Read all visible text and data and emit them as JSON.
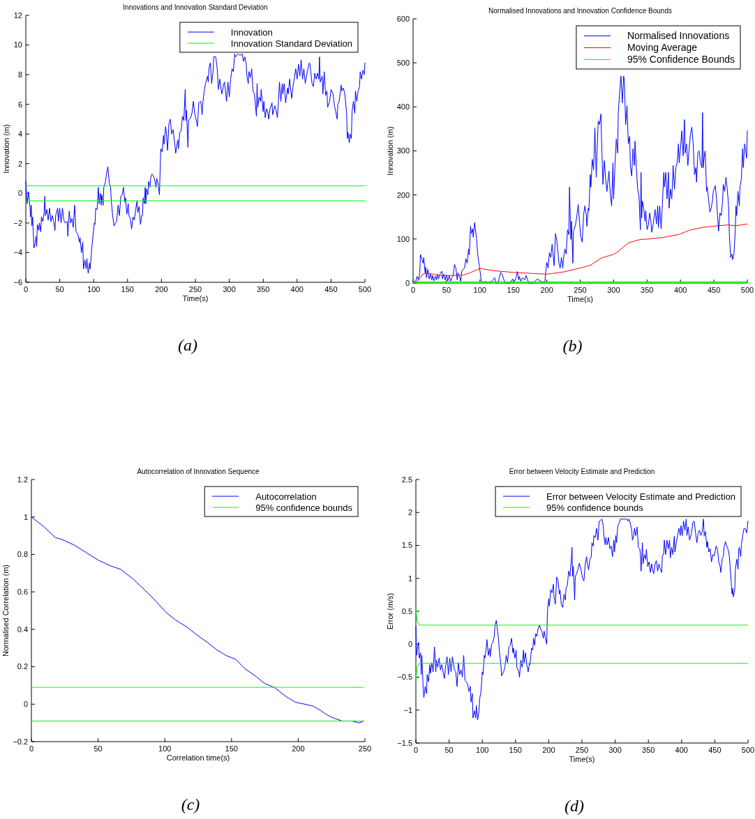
{
  "chart_data": [
    {
      "type": "line",
      "title": "Innovations and Innovation Standard Deviation",
      "xlabel": "Time(s)",
      "ylabel": "Innovation (m)",
      "annotations": [
        "(a)"
      ],
      "xlim": [
        0,
        500
      ],
      "ylim": [
        -6,
        12
      ],
      "xticks": [
        0,
        50,
        100,
        150,
        200,
        250,
        300,
        350,
        400,
        450,
        500
      ],
      "yticks": [
        {
          "value": -6,
          "label": "−6"
        },
        {
          "value": -4,
          "label": "−4"
        },
        {
          "value": -2,
          "label": "−2"
        },
        0,
        2,
        4,
        6,
        8,
        10,
        12
      ],
      "legend": "top right",
      "series": [
        {
          "name": "Innovation",
          "color": "#0000ff",
          "x": [
            0,
            2,
            4,
            6,
            7,
            8,
            9,
            10,
            12,
            14,
            15,
            16,
            17,
            19,
            20,
            22,
            23,
            25,
            27,
            28,
            29,
            31,
            33,
            35,
            37,
            39,
            41,
            43,
            44,
            47,
            48,
            50,
            52,
            54,
            56,
            58,
            61,
            62,
            64,
            66,
            68,
            70,
            72,
            74,
            76,
            77,
            79,
            80,
            82,
            84,
            85,
            87,
            89,
            90,
            92,
            94,
            95,
            97,
            99,
            101,
            102,
            103,
            105,
            107,
            108,
            110,
            111,
            112,
            114,
            115,
            117,
            119,
            121,
            123,
            125,
            126,
            128,
            130,
            132,
            134,
            136,
            138,
            140,
            142,
            144,
            146,
            147,
            149,
            151,
            152,
            154,
            156,
            158,
            160,
            162,
            164,
            165,
            167,
            169,
            171,
            172,
            173,
            175,
            176,
            177,
            178,
            180,
            181,
            183,
            184,
            186,
            188,
            190,
            192,
            193,
            195,
            197,
            199,
            201,
            203,
            204,
            206,
            207,
            209,
            211,
            213,
            215,
            217,
            220,
            221,
            224,
            225,
            227,
            229,
            231,
            233,
            235,
            236,
            237,
            239,
            240,
            243,
            245,
            247,
            249,
            251,
            253,
            255,
            258,
            260,
            261,
            263,
            265,
            268,
            269,
            270,
            272,
            274,
            276,
            277,
            280,
            282,
            284,
            286,
            289,
            292,
            293,
            296,
            298,
            300,
            302,
            304,
            306,
            308,
            309,
            313,
            316,
            319,
            321,
            323,
            325,
            326,
            328,
            329,
            331,
            333,
            335,
            337,
            340,
            341,
            342,
            344,
            346,
            347,
            350,
            351,
            353,
            355,
            357,
            358,
            360,
            363,
            364,
            367,
            369,
            371,
            373,
            374,
            376,
            378,
            379,
            381,
            383,
            386,
            387,
            389,
            392,
            394,
            396,
            398,
            400,
            402,
            404,
            406,
            408,
            410,
            412,
            415,
            418,
            419,
            422,
            424,
            426,
            428,
            430,
            432,
            433,
            434,
            437,
            438,
            440,
            442,
            444,
            445,
            448,
            450,
            453,
            455,
            457,
            459,
            460,
            462,
            465,
            466,
            468,
            470,
            471,
            473,
            474,
            475,
            477,
            478,
            480,
            481,
            483,
            485,
            486,
            488,
            490,
            492,
            493,
            495,
            497,
            499,
            500
          ],
          "values": [
            0.8,
            -0.7,
            0.1,
            -0.9,
            -1.6,
            -0.8,
            -2.2,
            -1.6,
            -3.7,
            -3.3,
            -2.9,
            -3.6,
            -2.1,
            -2.5,
            -2.0,
            -2.6,
            -1.6,
            -1.9,
            -1.3,
            -0.2,
            -1.5,
            -1.1,
            -1.8,
            -1.0,
            -1.9,
            -1.5,
            -1.9,
            -2.5,
            -1.5,
            -1.0,
            -1.9,
            -1.0,
            -2.0,
            -1.0,
            -1.8,
            -2.0,
            -1.9,
            -2.9,
            -1.2,
            -2.0,
            -1.7,
            -2.3,
            -0.8,
            -2.6,
            -2.7,
            -2.8,
            -3.3,
            -3.0,
            -4.0,
            -3.3,
            -5.1,
            -4.5,
            -5.1,
            -4.4,
            -5.4,
            -4.7,
            -5.1,
            -3.8,
            -2.9,
            -2.0,
            -2.1,
            -1.0,
            -1.1,
            0.4,
            -0.7,
            0.0,
            -0.8,
            -0.1,
            -0.8,
            0.4,
            0.7,
            1.3,
            1.8,
            0.7,
            0.4,
            -0.5,
            -1.5,
            -2.2,
            -2.0,
            -1.9,
            -0.8,
            -1.5,
            -0.2,
            -0.1,
            0.4,
            -0.6,
            -0.3,
            -1.4,
            -0.7,
            -1.5,
            -1.7,
            -2.4,
            -1.6,
            -1.8,
            -1.1,
            -0.5,
            -1.3,
            -0.9,
            -2.1,
            -1.5,
            -1.5,
            -0.3,
            -0.7,
            0.4,
            -0.7,
            0.3,
            -0.1,
            0.8,
            0.4,
            1.0,
            1.3,
            1.2,
            0.9,
            0.4,
            1.0,
            0.7,
            -0.1,
            3.0,
            2.8,
            3.9,
            3.3,
            4.5,
            4.2,
            2.9,
            4.7,
            5.0,
            4.0,
            4.3,
            3.2,
            2.7,
            3.6,
            3.0,
            4.1,
            4.2,
            5.2,
            4.9,
            7.0,
            4.9,
            5.6,
            3.1,
            4.9,
            5.1,
            5.4,
            6.2,
            5.4,
            5.0,
            4.5,
            6.1,
            6.2,
            5.3,
            6.1,
            6.9,
            7.4,
            7.9,
            7.5,
            8.4,
            8.8,
            7.4,
            8.2,
            9.2,
            9.2,
            8.5,
            7.0,
            7.7,
            6.7,
            7.4,
            7.5,
            6.2,
            7.5,
            6.5,
            7.7,
            8.4,
            8.2,
            9.4,
            9.2,
            9.4,
            9.3,
            9.4,
            8.9,
            9.2,
            8.7,
            7.9,
            7.4,
            8.2,
            7.8,
            8.4,
            6.9,
            6.7,
            5.2,
            7.4,
            5.8,
            6.5,
            6.2,
            7.0,
            5.5,
            6.2,
            5.1,
            5.7,
            5.4,
            5.0,
            5.7,
            6.1,
            5.3,
            5.9,
            5.6,
            5.1,
            6.7,
            7.5,
            6.2,
            7.4,
            6.7,
            7.4,
            6.1,
            7.1,
            6.7,
            7.7,
            6.4,
            7.2,
            7.8,
            8.4,
            7.7,
            8.7,
            7.9,
            9.0,
            7.7,
            8.4,
            7.4,
            8.2,
            8.8,
            8.7,
            7.4,
            7.2,
            8.1,
            7.7,
            8.1,
            7.7,
            9.2,
            7.5,
            7.9,
            6.7,
            8.2,
            6.6,
            6.9,
            5.8,
            6.2,
            7.0,
            6.7,
            5.9,
            5.5,
            5.0,
            6.0,
            6.2,
            7.3,
            6.9,
            7.1,
            6.8,
            6.4,
            5.4,
            3.7,
            4.1,
            3.4,
            4.0,
            3.7,
            5.5,
            6.2,
            5.4,
            6.9,
            6.2,
            6.9,
            7.2,
            8.2,
            7.7,
            8.3,
            8.0,
            8.8
          ]
        },
        {
          "name": "Innovation Standard Deviation",
          "color": "#00ff00",
          "x": [
            0,
            4,
            500
          ],
          "values": [
            0.6,
            0.5,
            0.5
          ]
        },
        {
          "color": "#00ff00",
          "x": [
            0,
            4,
            500
          ],
          "values": [
            -0.6,
            -0.5,
            -0.5
          ]
        }
      ]
    },
    {
      "type": "line",
      "title": "Normalised Innovations and Innovation Confidence Bounds",
      "xlabel": "Time(s)",
      "ylabel": "Innovation (m)",
      "annotations": [
        "(b)"
      ],
      "xlim": [
        0,
        500
      ],
      "ylim": [
        0,
        600
      ],
      "xticks": [
        0,
        50,
        100,
        150,
        200,
        250,
        300,
        350,
        400,
        450,
        500
      ],
      "yticks": [
        0,
        100,
        200,
        300,
        400,
        500,
        600
      ],
      "legend": "top right",
      "series": [
        {
          "name": "Normalised Innovations",
          "color": "#0000ff",
          "x": [
            0,
            4,
            6,
            8,
            10,
            11,
            13,
            15,
            16,
            18,
            19,
            20,
            22,
            24,
            26,
            28,
            29,
            31,
            33,
            35,
            36,
            38,
            40,
            43,
            44,
            46,
            48,
            50,
            52,
            54,
            56,
            58,
            60,
            62,
            64,
            66,
            67,
            70,
            71,
            73,
            75,
            77,
            79,
            81,
            83,
            84,
            86,
            87,
            89,
            90,
            92,
            93,
            95,
            97,
            99,
            101,
            102,
            105,
            108,
            111,
            118,
            122,
            124,
            127,
            129,
            131,
            133,
            136,
            138,
            145,
            149,
            151,
            154,
            156,
            158,
            159,
            161,
            164,
            167,
            169,
            171,
            173,
            179,
            183,
            186,
            190,
            193,
            197,
            199,
            200,
            202,
            204,
            206,
            208,
            209,
            211,
            213,
            215,
            217,
            218,
            220,
            222,
            224,
            225,
            227,
            229,
            231,
            233,
            234,
            236,
            237,
            239,
            240,
            243,
            245,
            247,
            249,
            251,
            253,
            255,
            257,
            259,
            260,
            262,
            263,
            265,
            266,
            268,
            270,
            272,
            274,
            275,
            277,
            279,
            281,
            282,
            284,
            286,
            288,
            290,
            291,
            293,
            295,
            297,
            299,
            300,
            302,
            304,
            306,
            307,
            309,
            311,
            313,
            315,
            316,
            318,
            320,
            322,
            324,
            325,
            327,
            329,
            331,
            332,
            334,
            336,
            338,
            340,
            341,
            342,
            343,
            345,
            347,
            348,
            350,
            352,
            354,
            356,
            357,
            359,
            362,
            364,
            366,
            367,
            369,
            371,
            373,
            375,
            376,
            378,
            380,
            382,
            383,
            385,
            387,
            389,
            391,
            393,
            395,
            397,
            398,
            400,
            402,
            404,
            406,
            407,
            409,
            411,
            413,
            415,
            417,
            419,
            421,
            423,
            424,
            426,
            428,
            430,
            432,
            433,
            434,
            436,
            437,
            439,
            440,
            442,
            444,
            446,
            448,
            449,
            452,
            454,
            455,
            457,
            459,
            461,
            463,
            464,
            466,
            468,
            470,
            472,
            473,
            475,
            477,
            478,
            480,
            482,
            483,
            484,
            486,
            488,
            489,
            491,
            493,
            494,
            496,
            497,
            499,
            500
          ],
          "values": [
            0,
            4,
            15,
            7,
            23,
            65,
            55,
            45,
            58,
            23,
            36,
            12,
            31,
            9,
            20,
            7,
            17,
            5,
            15,
            7,
            20,
            9,
            20,
            27,
            9,
            20,
            7,
            18,
            5,
            17,
            4,
            12,
            17,
            42,
            34,
            7,
            23,
            12,
            4,
            28,
            31,
            34,
            55,
            45,
            77,
            64,
            129,
            112,
            123,
            104,
            137,
            126,
            99,
            61,
            39,
            17,
            4,
            1,
            4,
            0,
            4,
            12,
            0,
            0,
            12,
            24,
            20,
            7,
            0,
            0,
            9,
            1,
            12,
            26,
            7,
            15,
            4,
            12,
            7,
            17,
            9,
            0,
            0,
            5,
            9,
            5,
            2,
            1,
            34,
            47,
            34,
            69,
            58,
            88,
            72,
            39,
            112,
            96,
            66,
            47,
            34,
            58,
            34,
            55,
            77,
            66,
            121,
            110,
            218,
            99,
            140,
            45,
            118,
            132,
            153,
            178,
            137,
            104,
            93,
            153,
            175,
            156,
            129,
            170,
            164,
            246,
            218,
            281,
            257,
            352,
            240,
            289,
            368,
            360,
            384,
            322,
            224,
            278,
            237,
            208,
            224,
            254,
            202,
            175,
            273,
            191,
            267,
            327,
            295,
            387,
            433,
            470,
            409,
            470,
            460,
            360,
            403,
            316,
            333,
            267,
            243,
            305,
            267,
            322,
            262,
            213,
            197,
            121,
            251,
            148,
            186,
            170,
            140,
            164,
            121,
            132,
            159,
            137,
            115,
            132,
            167,
            134,
            175,
            126,
            175,
            123,
            180,
            251,
            218,
            251,
            191,
            251,
            170,
            213,
            191,
            267,
            213,
            262,
            273,
            316,
            273,
            305,
            346,
            289,
            371,
            295,
            316,
            267,
            305,
            338,
            354,
            316,
            246,
            262,
            229,
            295,
            300,
            273,
            262,
            387,
            262,
            295,
            300,
            208,
            218,
            191,
            161,
            170,
            189,
            208,
            221,
            191,
            164,
            118,
            159,
            153,
            186,
            224,
            208,
            240,
            213,
            175,
            115,
            58,
            66,
            53,
            66,
            121,
            175,
            153,
            208,
            175,
            218,
            235,
            305,
            262,
            316,
            308,
            284,
            346
          ]
        },
        {
          "name": "Moving Average",
          "color": "#ff0000",
          "x": [
            0,
            5,
            10,
            14,
            20,
            30,
            40,
            60,
            75,
            85,
            100,
            120,
            150,
            175,
            200,
            225,
            250,
            265,
            282,
            300,
            307,
            322,
            340,
            354,
            372,
            397,
            414,
            432,
            450,
            471,
            482,
            500
          ],
          "values": [
            0,
            2,
            10,
            19,
            23,
            20,
            17,
            17,
            18,
            23,
            33,
            28,
            24,
            22,
            20,
            25,
            34,
            40,
            57,
            65,
            72,
            91,
            99,
            100,
            103,
            110,
            120,
            126,
            129,
            132,
            130,
            134
          ]
        },
        {
          "name": "95% Confidence Bounds",
          "color": "#00ff00",
          "x": [
            0,
            4,
            500
          ],
          "values": [
            6,
            3,
            3
          ]
        },
        {
          "color": "#00ff00",
          "x": [
            0,
            500
          ],
          "values": [
            1,
            1
          ]
        }
      ]
    },
    {
      "type": "line",
      "title": "Autocorrelation of Innovation Sequence",
      "xlabel": "Correlation time(s)",
      "ylabel": "Normalised Correlation (m)",
      "annotations": [
        "(c)"
      ],
      "xlim": [
        0,
        250
      ],
      "ylim": [
        -0.2,
        1.2
      ],
      "xticks": [
        0,
        50,
        100,
        150,
        200,
        250
      ],
      "yticks": [
        {
          "value": -0.2,
          "label": "−0.2"
        },
        0,
        0.2,
        0.4,
        0.6,
        0.8,
        1,
        1.2
      ],
      "legend": "top right",
      "series": [
        {
          "name": "Autocorrelation",
          "color": "#0000ff",
          "x": [
            0,
            9,
            18,
            23,
            32,
            41,
            50,
            59,
            67,
            76,
            85,
            92,
            101,
            108,
            117,
            124,
            132,
            139,
            146,
            153,
            160,
            168,
            175,
            182,
            191,
            198,
            205,
            211,
            216,
            220,
            225,
            233,
            240,
            246,
            249
          ],
          "values": [
            1.0,
            0.95,
            0.89,
            0.88,
            0.85,
            0.81,
            0.77,
            0.74,
            0.72,
            0.67,
            0.61,
            0.56,
            0.49,
            0.45,
            0.41,
            0.37,
            0.33,
            0.29,
            0.26,
            0.24,
            0.19,
            0.15,
            0.11,
            0.09,
            0.04,
            0.01,
            0.0,
            -0.01,
            -0.03,
            -0.05,
            -0.07,
            -0.09,
            -0.09,
            -0.1,
            -0.09
          ]
        },
        {
          "name": "95% confidence bounds",
          "color": "#00ff00",
          "x": [
            0,
            249
          ],
          "values": [
            0.09,
            0.09
          ]
        },
        {
          "color": "#00ff00",
          "x": [
            0,
            249
          ],
          "values": [
            -0.09,
            -0.09
          ]
        }
      ]
    },
    {
      "type": "line",
      "title": "Error between Velocity Estimate and Prediction",
      "xlabel": "Time(s)",
      "ylabel": "Error (m/s)",
      "annotations": [
        "(d)"
      ],
      "xlim": [
        0,
        500
      ],
      "ylim": [
        -1.5,
        2.5
      ],
      "xticks": [
        0,
        50,
        100,
        150,
        200,
        250,
        300,
        350,
        400,
        450,
        500
      ],
      "yticks": [
        {
          "value": -1.5,
          "label": "−1.5"
        },
        {
          "value": -1,
          "label": "−1"
        },
        {
          "value": -0.5,
          "label": "−0.5"
        },
        0,
        0.5,
        1,
        1.5,
        2,
        2.5
      ],
      "legend": "top right",
      "series": [
        {
          "name": "Error between Velocity Estimate and Prediction",
          "color": "#0000ff",
          "x": [
            0,
            1,
            3,
            4,
            5,
            7,
            8,
            9,
            11,
            12,
            14,
            16,
            17,
            19,
            21,
            22,
            24,
            26,
            28,
            30,
            31,
            33,
            35,
            37,
            39,
            41,
            43,
            45,
            47,
            49,
            51,
            53,
            55,
            58,
            60,
            62,
            64,
            66,
            68,
            70,
            72,
            74,
            76,
            78,
            80,
            82,
            83,
            85,
            86,
            88,
            90,
            91,
            93,
            95,
            96,
            98,
            100,
            101,
            103,
            104,
            106,
            107,
            109,
            111,
            112,
            114,
            116,
            118,
            119,
            121,
            123,
            124,
            126,
            128,
            129,
            132,
            134,
            136,
            138,
            140,
            142,
            144,
            146,
            147,
            149,
            151,
            152,
            155,
            156,
            158,
            160,
            162,
            163,
            165,
            167,
            169,
            171,
            172,
            174,
            176,
            177,
            179,
            180,
            182,
            184,
            186,
            188,
            190,
            192,
            193,
            195,
            197,
            198,
            200,
            201,
            203,
            205,
            207,
            208,
            210,
            212,
            214,
            216,
            217,
            219,
            221,
            223,
            225,
            226,
            228,
            230,
            232,
            234,
            235,
            236,
            237,
            239,
            240,
            242,
            244,
            246,
            249,
            251,
            253,
            255,
            257,
            258,
            260,
            262,
            264,
            265,
            267,
            268,
            270,
            272,
            274,
            276,
            277,
            280,
            282,
            283,
            285,
            286,
            288,
            290,
            292,
            294,
            296,
            298,
            299,
            301,
            302,
            304,
            306,
            308,
            311,
            315,
            318,
            319,
            321,
            323,
            325,
            326,
            328,
            329,
            331,
            333,
            335,
            337,
            338,
            339,
            341,
            342,
            344,
            346,
            347,
            349,
            351,
            353,
            355,
            356,
            358,
            360,
            362,
            364,
            366,
            368,
            370,
            371,
            373,
            374,
            376,
            378,
            380,
            382,
            383,
            385,
            387,
            389,
            390,
            392,
            394,
            396,
            398,
            399,
            401,
            403,
            405,
            407,
            408,
            410,
            412,
            415,
            417,
            419,
            421,
            423,
            425,
            427,
            429,
            431,
            433,
            434,
            436,
            438,
            439,
            441,
            443,
            445,
            447,
            449,
            452,
            454,
            456,
            458,
            459,
            461,
            463,
            464,
            466,
            468,
            470,
            472,
            473,
            475,
            476,
            477,
            478,
            480,
            481,
            483,
            485,
            486,
            487,
            489,
            490,
            492,
            494,
            496,
            498,
            499,
            500
          ],
          "values": [
            0.27,
            -0.17,
            -0.02,
            0.03,
            -0.21,
            -0.13,
            -0.46,
            -0.17,
            -0.68,
            -0.81,
            -0.64,
            -0.75,
            -0.46,
            -0.57,
            -0.31,
            -0.44,
            -0.28,
            -0.42,
            -0.04,
            -0.42,
            -0.24,
            -0.35,
            -0.21,
            -0.39,
            -0.31,
            -0.42,
            -0.52,
            -0.31,
            -0.19,
            -0.46,
            -0.21,
            -0.42,
            -0.19,
            -0.39,
            -0.42,
            -0.64,
            -0.28,
            -0.46,
            -0.39,
            -0.5,
            -0.17,
            -0.55,
            -0.57,
            -0.61,
            -0.72,
            -0.64,
            -0.88,
            -0.75,
            -1.12,
            -1.01,
            -1.12,
            -0.93,
            -1.15,
            -1.01,
            -0.83,
            -0.72,
            -0.42,
            -0.46,
            -0.17,
            -0.21,
            -0.04,
            0.07,
            -0.17,
            -0.06,
            -0.19,
            0,
            0.03,
            0.12,
            0.27,
            0.36,
            0.2,
            0.12,
            -0.13,
            -0.31,
            -0.48,
            -0.42,
            -0.35,
            -0.17,
            -0.28,
            -0.04,
            -0.02,
            0.09,
            -0.13,
            -0.06,
            -0.21,
            -0.09,
            -0.35,
            -0.42,
            -0.5,
            -0.24,
            -0.35,
            -0.09,
            -0.28,
            -0.13,
            -0.31,
            -0.42,
            -0.28,
            -0.31,
            -0.06,
            -0.09,
            0.09,
            -0.02,
            0.16,
            0.12,
            0.23,
            0.29,
            0.23,
            0.18,
            0.09,
            0.2,
            0.1,
            0,
            0.49,
            0.69,
            0.58,
            0.83,
            0.78,
            0.91,
            0.71,
            0.61,
            1.02,
            0.96,
            0.76,
            0.82,
            0.6,
            0.56,
            0.76,
            0.67,
            0.85,
            0.89,
            1.11,
            1.03,
            1.29,
            1.47,
            1.03,
            1.18,
            0.67,
            1.03,
            1.07,
            1.14,
            1.23,
            1.11,
            1,
            0.96,
            1.22,
            1.33,
            1.23,
            1.13,
            1.29,
            1.33,
            1.54,
            1.49,
            1.65,
            1.62,
            1.76,
            1.58,
            1.87,
            1.87,
            1.9,
            1.8,
            1.65,
            1.51,
            1.62,
            1.51,
            1.62,
            1.45,
            1.49,
            1.33,
            1.58,
            1.4,
            1.65,
            1.54,
            1.8,
            1.84,
            1.9,
            1.9,
            1.9,
            1.9,
            1.87,
            1.9,
            1.82,
            1.73,
            1.58,
            1.65,
            1.76,
            1.65,
            1.78,
            1.47,
            1.45,
            1.36,
            1.11,
            1.54,
            1.22,
            1.36,
            1.29,
            1.44,
            1.18,
            1.25,
            1.09,
            1.22,
            1.14,
            1.07,
            1.22,
            1.27,
            1.11,
            1.22,
            1.14,
            1.09,
            1.33,
            1.38,
            1.58,
            1.36,
            1.58,
            1.45,
            1.58,
            1.31,
            1.47,
            1.36,
            1.64,
            1.4,
            1.54,
            1.65,
            1.76,
            1.65,
            1.8,
            1.65,
            1.87,
            1.73,
            1.9,
            1.65,
            1.78,
            1.58,
            1.69,
            1.85,
            1.87,
            1.69,
            1.54,
            1.69,
            1.73,
            1.65,
            1.71,
            1.9,
            1.64,
            1.71,
            1.47,
            1.56,
            1.4,
            1.45,
            1.25,
            1.36,
            1.34,
            1.49,
            1.44,
            1.25,
            1.18,
            1.09,
            1.29,
            1.34,
            1.47,
            1.56,
            1.49,
            1.44,
            1.33,
            1.18,
            0.89,
            0.76,
            0.85,
            0.72,
            0.82,
            1.14,
            1.29,
            1.14,
            1.44,
            1.47,
            1.33,
            1.51,
            1.65,
            1.76,
            1.75,
            1.69,
            1.78,
            1.87
          ]
        },
        {
          "name": "95% confidence bounds",
          "color": "#00ff00",
          "x": [
            0,
            2,
            5,
            500
          ],
          "values": [
            0.54,
            0.35,
            0.29,
            0.29
          ]
        },
        {
          "color": "#00ff00",
          "x": [
            0,
            2,
            5,
            500
          ],
          "values": [
            -0.54,
            -0.35,
            -0.29,
            -0.29
          ]
        }
      ]
    }
  ]
}
